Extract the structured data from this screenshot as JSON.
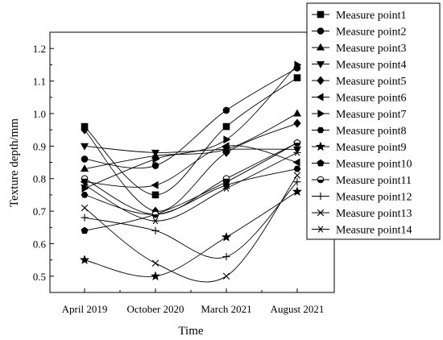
{
  "chart_data": {
    "type": "line",
    "title": "",
    "xlabel": "Time",
    "ylabel": "Texture depth/mm",
    "categories": [
      "April 2019",
      "October 2020",
      "March 2021",
      "August 2021"
    ],
    "ylim": [
      0.45,
      1.25
    ],
    "yticks": [
      0.5,
      0.6,
      0.7,
      0.8,
      0.9,
      1.0,
      1.1,
      1.2
    ],
    "ytick_labels": [
      "0.5",
      "0.6",
      "0.7",
      "0.8",
      "0.9",
      "1.0",
      "1.1",
      "1.2"
    ],
    "grid": false,
    "legend_position": "top-right",
    "line_color": "#000000",
    "series": [
      {
        "name": "Measure point1",
        "marker": "square",
        "values": [
          0.96,
          0.75,
          0.96,
          1.11
        ]
      },
      {
        "name": "Measure point2",
        "marker": "circle",
        "values": [
          0.86,
          0.84,
          1.01,
          1.14
        ]
      },
      {
        "name": "Measure point3",
        "marker": "triangle-up",
        "values": [
          0.83,
          0.87,
          0.89,
          1.0
        ]
      },
      {
        "name": "Measure point4",
        "marker": "triangle-down",
        "values": [
          0.9,
          0.88,
          0.89,
          0.89
        ]
      },
      {
        "name": "Measure point5",
        "marker": "diamond",
        "values": [
          0.95,
          0.7,
          0.88,
          0.97
        ]
      },
      {
        "name": "Measure point6",
        "marker": "triangle-left",
        "values": [
          0.79,
          0.78,
          0.9,
          0.85
        ]
      },
      {
        "name": "Measure point7",
        "marker": "triangle-right",
        "values": [
          0.77,
          0.86,
          0.92,
          1.15
        ]
      },
      {
        "name": "Measure point8",
        "marker": "hexagon",
        "values": [
          0.75,
          0.69,
          0.78,
          0.83
        ]
      },
      {
        "name": "Measure point9",
        "marker": "star",
        "values": [
          0.55,
          0.5,
          0.62,
          0.76
        ]
      },
      {
        "name": "Measure point10",
        "marker": "pentagon",
        "values": [
          0.64,
          0.69,
          0.79,
          0.91
        ]
      },
      {
        "name": "Measure point11",
        "marker": "half-circle",
        "values": [
          0.8,
          0.69,
          0.8,
          0.91
        ]
      },
      {
        "name": "Measure point12",
        "marker": "plus",
        "values": [
          0.68,
          0.64,
          0.56,
          0.79
        ]
      },
      {
        "name": "Measure point13",
        "marker": "x",
        "values": [
          0.71,
          0.54,
          0.5,
          0.81
        ]
      },
      {
        "name": "Measure point14",
        "marker": "asterisk",
        "values": [
          0.78,
          0.67,
          0.77,
          0.88
        ]
      }
    ]
  }
}
